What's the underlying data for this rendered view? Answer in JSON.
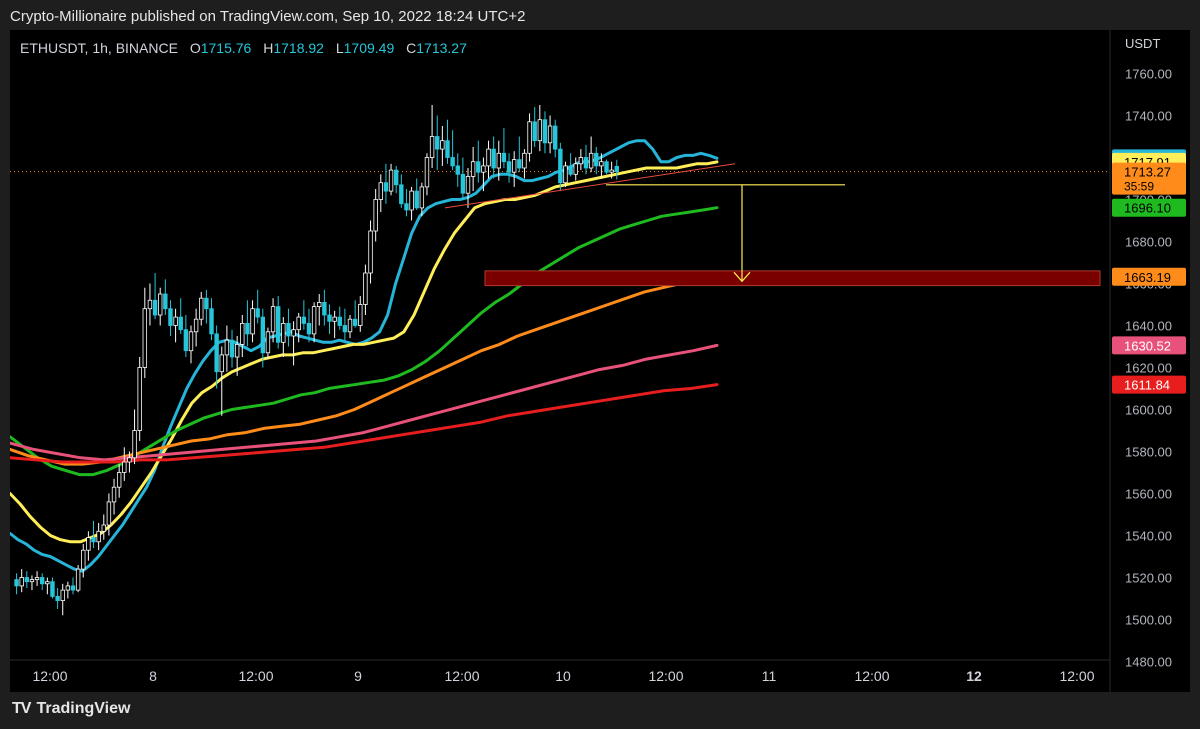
{
  "caption": "Crypto-Millionaire published on TradingView.com, Sep 10, 2022 18:24 UTC+2",
  "symbol": {
    "name": "ETHUSDT, 1h, BINANCE",
    "open_label": "O",
    "open": "1715.76",
    "high_label": "H",
    "high": "1718.92",
    "low_label": "L",
    "low": "1709.49",
    "close_label": "C",
    "close": "1713.27"
  },
  "branding": "TradingView",
  "colors": {
    "up": "#ffffff",
    "down": "#26c6da",
    "ema_cyan": "#26b5d8",
    "ema_yellow": "#ffee58",
    "ema_green": "#1fba1f",
    "ema_orange": "#ff8c1a",
    "ema_pink": "#e8527a",
    "ema_red": "#e81e1e",
    "zone": "#7a0000",
    "target": "#ffee58",
    "trendline": "#e84b3c"
  },
  "chart_data": {
    "type": "candlestick",
    "currency": "USDT",
    "ylim": [
      1475,
      1780
    ],
    "y_ticks": [
      1480,
      1500,
      1520,
      1540,
      1560,
      1580,
      1600,
      1620,
      1640,
      1660,
      1680,
      1700,
      1720,
      1740,
      1760
    ],
    "x_tick_labels": [
      "12:00",
      "8",
      "12:00",
      "9",
      "12:00",
      "10",
      "12:00",
      "11",
      "12:00",
      "12",
      "12:00"
    ],
    "bold_x_labels": [
      "12"
    ],
    "last_price": "1713.27",
    "countdown": "35:59",
    "price_labels": [
      {
        "value": 1719.6,
        "text": "1719.60",
        "color": "#26b5d8",
        "text_color": "#000000"
      },
      {
        "value": 1717.91,
        "text": "1717.91",
        "color": "#ffee58",
        "text_color": "#000000"
      },
      {
        "value": 1696.1,
        "text": "1696.10",
        "color": "#1fba1f",
        "text_color": "#000000"
      },
      {
        "value": 1663.19,
        "text": "1663.19",
        "color": "#ff8c1a",
        "text_color": "#000000"
      },
      {
        "value": 1630.52,
        "text": "1630.52",
        "color": "#e8527a",
        "text_color": "#ffffff"
      },
      {
        "value": 1611.84,
        "text": "1611.84",
        "color": "#e81e1e",
        "text_color": "#ffffff"
      }
    ],
    "candles": [
      [
        1519,
        1522,
        1512,
        1516
      ],
      [
        1516,
        1524,
        1513,
        1520
      ],
      [
        1520,
        1523,
        1515,
        1518
      ],
      [
        1518,
        1521,
        1514,
        1519
      ],
      [
        1519,
        1523,
        1516,
        1520
      ],
      [
        1520,
        1522,
        1514,
        1517
      ],
      [
        1517,
        1520,
        1512,
        1518
      ],
      [
        1518,
        1520,
        1510,
        1511
      ],
      [
        1511,
        1515,
        1505,
        1509
      ],
      [
        1509,
        1517,
        1502,
        1514
      ],
      [
        1514,
        1518,
        1510,
        1516
      ],
      [
        1516,
        1520,
        1512,
        1514
      ],
      [
        1514,
        1526,
        1513,
        1524
      ],
      [
        1524,
        1536,
        1520,
        1533
      ],
      [
        1533,
        1542,
        1528,
        1539
      ],
      [
        1539,
        1547,
        1534,
        1537
      ],
      [
        1537,
        1546,
        1533,
        1542
      ],
      [
        1542,
        1550,
        1538,
        1545
      ],
      [
        1545,
        1560,
        1540,
        1556
      ],
      [
        1556,
        1567,
        1550,
        1563
      ],
      [
        1563,
        1574,
        1558,
        1570
      ],
      [
        1570,
        1582,
        1566,
        1575
      ],
      [
        1575,
        1580,
        1570,
        1577
      ],
      [
        1577,
        1600,
        1574,
        1590
      ],
      [
        1590,
        1625,
        1585,
        1620
      ],
      [
        1620,
        1658,
        1615,
        1648
      ],
      [
        1648,
        1660,
        1640,
        1652
      ],
      [
        1652,
        1665,
        1643,
        1645
      ],
      [
        1645,
        1658,
        1640,
        1655
      ],
      [
        1655,
        1662,
        1645,
        1648
      ],
      [
        1648,
        1652,
        1635,
        1640
      ],
      [
        1640,
        1648,
        1632,
        1644
      ],
      [
        1644,
        1653,
        1636,
        1638
      ],
      [
        1638,
        1645,
        1625,
        1628
      ],
      [
        1628,
        1640,
        1622,
        1637
      ],
      [
        1637,
        1648,
        1630,
        1643
      ],
      [
        1643,
        1656,
        1640,
        1653
      ],
      [
        1653,
        1657,
        1641,
        1648
      ],
      [
        1648,
        1653,
        1633,
        1636
      ],
      [
        1636,
        1640,
        1610,
        1618
      ],
      [
        1618,
        1630,
        1597,
        1626
      ],
      [
        1626,
        1640,
        1618,
        1633
      ],
      [
        1633,
        1638,
        1620,
        1625
      ],
      [
        1625,
        1635,
        1616,
        1631
      ],
      [
        1631,
        1645,
        1625,
        1641
      ],
      [
        1641,
        1652,
        1630,
        1636
      ],
      [
        1636,
        1652,
        1632,
        1648
      ],
      [
        1648,
        1657,
        1641,
        1644
      ],
      [
        1644,
        1648,
        1620,
        1627
      ],
      [
        1627,
        1639,
        1624,
        1637
      ],
      [
        1637,
        1653,
        1632,
        1649
      ],
      [
        1649,
        1654,
        1629,
        1632
      ],
      [
        1632,
        1644,
        1625,
        1641
      ],
      [
        1641,
        1648,
        1630,
        1635
      ],
      [
        1635,
        1642,
        1621,
        1638
      ],
      [
        1638,
        1646,
        1632,
        1644
      ],
      [
        1644,
        1652,
        1638,
        1641
      ],
      [
        1641,
        1648,
        1632,
        1636
      ],
      [
        1636,
        1651,
        1632,
        1649
      ],
      [
        1649,
        1655,
        1640,
        1651
      ],
      [
        1651,
        1657,
        1640,
        1645
      ],
      [
        1645,
        1650,
        1636,
        1642
      ],
      [
        1642,
        1647,
        1634,
        1644
      ],
      [
        1644,
        1649,
        1638,
        1640
      ],
      [
        1640,
        1648,
        1633,
        1637
      ],
      [
        1637,
        1645,
        1634,
        1643
      ],
      [
        1643,
        1652,
        1639,
        1640
      ],
      [
        1640,
        1654,
        1637,
        1650
      ],
      [
        1650,
        1669,
        1645,
        1665
      ],
      [
        1665,
        1690,
        1660,
        1685
      ],
      [
        1685,
        1705,
        1680,
        1700
      ],
      [
        1700,
        1712,
        1694,
        1708
      ],
      [
        1708,
        1717,
        1698,
        1704
      ],
      [
        1704,
        1717,
        1702,
        1714
      ],
      [
        1714,
        1716,
        1703,
        1707
      ],
      [
        1707,
        1712,
        1696,
        1698
      ],
      [
        1698,
        1705,
        1692,
        1695
      ],
      [
        1695,
        1706,
        1690,
        1704
      ],
      [
        1704,
        1710,
        1695,
        1696
      ],
      [
        1696,
        1708,
        1692,
        1706
      ],
      [
        1706,
        1722,
        1702,
        1720
      ],
      [
        1720,
        1745,
        1715,
        1730
      ],
      [
        1730,
        1740,
        1714,
        1724
      ],
      [
        1724,
        1735,
        1716,
        1728
      ],
      [
        1728,
        1738,
        1717,
        1720
      ],
      [
        1720,
        1733,
        1714,
        1716
      ],
      [
        1716,
        1722,
        1706,
        1712
      ],
      [
        1712,
        1720,
        1700,
        1703
      ],
      [
        1703,
        1715,
        1696,
        1711
      ],
      [
        1711,
        1725,
        1704,
        1718
      ],
      [
        1718,
        1728,
        1708,
        1713
      ],
      [
        1713,
        1720,
        1704,
        1716
      ],
      [
        1716,
        1728,
        1710,
        1724
      ],
      [
        1724,
        1730,
        1710,
        1715
      ],
      [
        1715,
        1728,
        1709,
        1722
      ],
      [
        1722,
        1734,
        1715,
        1718
      ],
      [
        1718,
        1722,
        1708,
        1713
      ],
      [
        1713,
        1723,
        1706,
        1719
      ],
      [
        1719,
        1730,
        1713,
        1715
      ],
      [
        1715,
        1724,
        1710,
        1722
      ],
      [
        1722,
        1741,
        1718,
        1737
      ],
      [
        1737,
        1744,
        1725,
        1728
      ],
      [
        1728,
        1745,
        1723,
        1738
      ],
      [
        1738,
        1742,
        1722,
        1727
      ],
      [
        1727,
        1740,
        1722,
        1735
      ],
      [
        1735,
        1738,
        1720,
        1724
      ],
      [
        1724,
        1727,
        1704,
        1708
      ],
      [
        1708,
        1718,
        1706,
        1716
      ],
      [
        1716,
        1722,
        1711,
        1712
      ],
      [
        1712,
        1720,
        1709,
        1717
      ],
      [
        1717,
        1724,
        1714,
        1720
      ],
      [
        1720,
        1726,
        1712,
        1715
      ],
      [
        1715,
        1730,
        1713,
        1722
      ],
      [
        1722,
        1725,
        1712,
        1716
      ],
      [
        1716,
        1722,
        1710,
        1718
      ],
      [
        1718,
        1719,
        1712,
        1713
      ],
      [
        1713,
        1718,
        1710,
        1714
      ],
      [
        1715.76,
        1718.92,
        1709.49,
        1713.27
      ]
    ],
    "emas": [
      {
        "name": "",
        "color": "#26b5d8",
        "points": [
          1541,
          1538,
          1536,
          1533,
          1531,
          1530,
          1528,
          1526,
          1524,
          1523,
          1526,
          1530,
          1535,
          1540,
          1545,
          1551,
          1557,
          1563,
          1571,
          1582,
          1592,
          1601,
          1610,
          1617,
          1623,
          1628,
          1632,
          1633,
          1632,
          1630,
          1628,
          1630,
          1634,
          1635,
          1636,
          1637,
          1635,
          1634,
          1633,
          1632,
          1632,
          1633,
          1632,
          1631,
          1632,
          1634,
          1637,
          1645,
          1660,
          1672,
          1684,
          1692,
          1696,
          1698,
          1699,
          1700,
          1700,
          1701,
          1703,
          1707,
          1711,
          1712,
          1712,
          1711,
          1709,
          1709,
          1710,
          1711,
          1713,
          1714,
          1716,
          1718,
          1718,
          1719,
          1721,
          1723,
          1725,
          1727,
          1728,
          1728,
          1724,
          1718,
          1718,
          1720,
          1721,
          1721,
          1722,
          1721,
          1719.6
        ]
      },
      {
        "name": "",
        "color": "#ffee58",
        "points": [
          1560,
          1555,
          1549,
          1544,
          1540,
          1538,
          1537,
          1537,
          1539,
          1541,
          1545,
          1550,
          1556,
          1563,
          1570,
          1578,
          1586,
          1595,
          1603,
          1608,
          1611,
          1615,
          1618,
          1620,
          1622,
          1624,
          1625,
          1626,
          1626,
          1627,
          1627,
          1628,
          1629,
          1630,
          1631,
          1631,
          1632,
          1633,
          1634,
          1637,
          1645,
          1656,
          1667,
          1676,
          1684,
          1690,
          1696,
          1698,
          1699,
          1700,
          1700,
          1701,
          1702,
          1704,
          1706,
          1707,
          1708,
          1709,
          1710,
          1711,
          1712,
          1713,
          1714,
          1715,
          1715,
          1715,
          1715,
          1716,
          1717,
          1717,
          1717.91
        ]
      },
      {
        "name": "",
        "color": "#1fba1f",
        "points": [
          1587,
          1582,
          1577,
          1573,
          1571,
          1569,
          1569,
          1571,
          1574,
          1578,
          1582,
          1586,
          1590,
          1593,
          1596,
          1598,
          1600,
          1601,
          1602,
          1603,
          1605,
          1607,
          1608,
          1610,
          1611,
          1612,
          1613,
          1614,
          1616,
          1619,
          1623,
          1628,
          1634,
          1640,
          1646,
          1651,
          1655,
          1660,
          1665,
          1669,
          1673,
          1677,
          1680,
          1683,
          1686,
          1688,
          1690,
          1692,
          1693,
          1694,
          1695,
          1696.1
        ]
      },
      {
        "name": "",
        "color": "#ff8c1a",
        "points": [
          1581,
          1578,
          1576,
          1574,
          1574,
          1575,
          1577,
          1579,
          1581,
          1583,
          1585,
          1586,
          1588,
          1589,
          1591,
          1592,
          1593,
          1595,
          1597,
          1600,
          1604,
          1608,
          1612,
          1616,
          1620,
          1624,
          1628,
          1631,
          1635,
          1638,
          1641,
          1644,
          1647,
          1650,
          1653,
          1656,
          1658,
          1660,
          1662,
          1663.19
        ]
      },
      {
        "name": "",
        "color": "#e8527a",
        "points": [
          1584,
          1581,
          1579,
          1577,
          1576,
          1577,
          1578,
          1579,
          1580,
          1581,
          1582,
          1583,
          1584,
          1585,
          1587,
          1589,
          1592,
          1595,
          1598,
          1601,
          1604,
          1607,
          1610,
          1613,
          1616,
          1619,
          1621,
          1624,
          1626,
          1628,
          1630.52
        ]
      },
      {
        "name": "",
        "color": "#e81e1e",
        "points": [
          1577,
          1576,
          1575,
          1575,
          1575,
          1576,
          1576,
          1577,
          1578,
          1579,
          1580,
          1581,
          1582,
          1584,
          1586,
          1588,
          1590,
          1592,
          1594,
          1597,
          1599,
          1601,
          1603,
          1605,
          1607,
          1609,
          1610,
          1611.84
        ]
      }
    ],
    "annotations": {
      "resistance_line_price": 1707,
      "target_zone": [
        1659,
        1666
      ],
      "target_arrow_from": 1707,
      "target_arrow_to": 1662,
      "trendline_from": 1696,
      "trendline_to": 1714
    }
  }
}
